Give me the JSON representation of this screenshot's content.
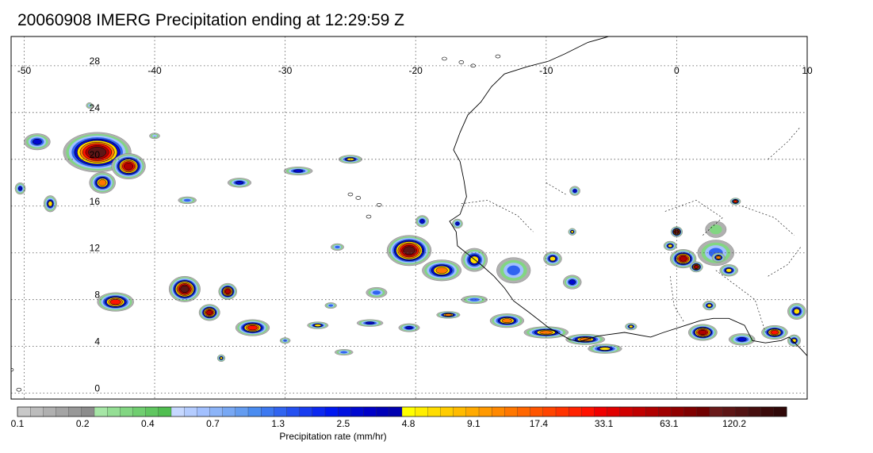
{
  "header": {
    "title": "20060908 IMERG Precipitation ending at 12:29:59 Z"
  },
  "map": {
    "lon_range": [
      -51,
      10
    ],
    "lat_range": [
      -0.5,
      30.5
    ],
    "lon_ticks": [
      "-50",
      "-40",
      "-30",
      "-20",
      "-10",
      "0",
      "10"
    ],
    "lat_ticks": [
      "0",
      "4",
      "8",
      "12",
      "16",
      "20",
      "24",
      "28"
    ],
    "gridlines": true,
    "coastline_color": "#000000"
  },
  "colorbar": {
    "title": "Precipitation rate (mm/hr)",
    "labels": [
      "0.1",
      "0.2",
      "0.4",
      "0.7",
      "1.3",
      "2.5",
      "4.8",
      "9.1",
      "17.4",
      "33.1",
      "63.1",
      "120.2"
    ],
    "colors": [
      "#c8c8c8",
      "#bcbcbc",
      "#b0b0b0",
      "#a4a4a4",
      "#989898",
      "#8c8c8c",
      "#a6e6a6",
      "#94de94",
      "#82d682",
      "#70ce70",
      "#60c660",
      "#50be50",
      "#c6d8ff",
      "#b4ccff",
      "#a2c0ff",
      "#8cb4f8",
      "#78a8f4",
      "#649cf0",
      "#4a8cf0",
      "#3c78f0",
      "#3064f0",
      "#2450f0",
      "#183cf0",
      "#0c28f0",
      "#0018f0",
      "#0010e0",
      "#0008d0",
      "#0000c8",
      "#0000b8",
      "#0000b0",
      "#ffff00",
      "#ffee00",
      "#ffdd00",
      "#ffcc00",
      "#ffbb00",
      "#ffaa00",
      "#ff9900",
      "#ff8800",
      "#ff7700",
      "#ff6600",
      "#ff5500",
      "#ff4400",
      "#ff3300",
      "#ff2200",
      "#ff1100",
      "#f00000",
      "#e00000",
      "#d00000",
      "#c00000",
      "#b00000",
      "#a00000",
      "#900000",
      "#800000",
      "#700000",
      "#6a1a1a",
      "#5e1616",
      "#521212",
      "#460e0e",
      "#3a0a0a",
      "#300808"
    ],
    "labels_per_step": 5
  },
  "precip_cells": [
    {
      "lon": -44.4,
      "lat": 20.6,
      "rx": 5.2,
      "ry": 3.4,
      "peak": 45
    },
    {
      "lon": -42.0,
      "lat": 19.4,
      "rx": 2.6,
      "ry": 2.2,
      "peak": 22
    },
    {
      "lon": -44.0,
      "lat": 18.0,
      "rx": 2.0,
      "ry": 1.8,
      "peak": 5
    },
    {
      "lon": -49.0,
      "lat": 21.5,
      "rx": 2.0,
      "ry": 1.4,
      "peak": 1.5
    },
    {
      "lon": -48.0,
      "lat": 16.2,
      "rx": 1.0,
      "ry": 1.4,
      "peak": 3
    },
    {
      "lon": -50.3,
      "lat": 17.5,
      "rx": 0.8,
      "ry": 1.0,
      "peak": 2
    },
    {
      "lon": -43.0,
      "lat": 7.8,
      "rx": 2.8,
      "ry": 1.6,
      "peak": 15
    },
    {
      "lon": -37.7,
      "lat": 8.9,
      "rx": 2.4,
      "ry": 2.2,
      "peak": 60
    },
    {
      "lon": -34.4,
      "lat": 8.7,
      "rx": 1.4,
      "ry": 1.4,
      "peak": 20
    },
    {
      "lon": -35.8,
      "lat": 6.9,
      "rx": 1.6,
      "ry": 1.4,
      "peak": 25
    },
    {
      "lon": -32.5,
      "lat": 5.6,
      "rx": 2.6,
      "ry": 1.4,
      "peak": 12
    },
    {
      "lon": -34.9,
      "lat": 3.0,
      "rx": 0.6,
      "ry": 0.6,
      "peak": 3
    },
    {
      "lon": -20.5,
      "lat": 12.2,
      "rx": 3.4,
      "ry": 2.6,
      "peak": 110
    },
    {
      "lon": -18.0,
      "lat": 10.5,
      "rx": 3.0,
      "ry": 1.8,
      "peak": 6
    },
    {
      "lon": -15.5,
      "lat": 11.4,
      "rx": 2.0,
      "ry": 2.0,
      "peak": 3
    },
    {
      "lon": -19.5,
      "lat": 14.7,
      "rx": 1.0,
      "ry": 1.0,
      "peak": 2
    },
    {
      "lon": -16.8,
      "lat": 14.5,
      "rx": 0.8,
      "ry": 0.8,
      "peak": 1.5
    },
    {
      "lon": -13.0,
      "lat": 6.2,
      "rx": 2.6,
      "ry": 1.2,
      "peak": 8
    },
    {
      "lon": -10.0,
      "lat": 5.2,
      "rx": 3.4,
      "ry": 1.0,
      "peak": 6
    },
    {
      "lon": -7.0,
      "lat": 4.6,
      "rx": 3.0,
      "ry": 0.9,
      "peak": 5
    },
    {
      "lon": -5.5,
      "lat": 3.8,
      "rx": 2.6,
      "ry": 0.8,
      "peak": 3
    },
    {
      "lon": -12.5,
      "lat": 10.5,
      "rx": 2.6,
      "ry": 2.2,
      "peak": 1.2
    },
    {
      "lon": -9.5,
      "lat": 11.5,
      "rx": 1.4,
      "ry": 1.2,
      "peak": 4
    },
    {
      "lon": -8.0,
      "lat": 9.5,
      "rx": 1.4,
      "ry": 1.2,
      "peak": 2
    },
    {
      "lon": -8.0,
      "lat": 13.8,
      "rx": 0.6,
      "ry": 0.6,
      "peak": 4
    },
    {
      "lon": -7.8,
      "lat": 17.3,
      "rx": 0.8,
      "ry": 0.8,
      "peak": 2
    },
    {
      "lon": 0.0,
      "lat": 13.8,
      "rx": 0.9,
      "ry": 0.9,
      "peak": 40
    },
    {
      "lon": -0.5,
      "lat": 12.6,
      "rx": 1.0,
      "ry": 0.8,
      "peak": 4
    },
    {
      "lon": 0.5,
      "lat": 11.5,
      "rx": 2.0,
      "ry": 1.6,
      "peak": 20
    },
    {
      "lon": 1.5,
      "lat": 10.8,
      "rx": 1.0,
      "ry": 0.9,
      "peak": 30
    },
    {
      "lon": 3.0,
      "lat": 12.0,
      "rx": 2.8,
      "ry": 2.2,
      "peak": 1.2
    },
    {
      "lon": 3.2,
      "lat": 11.6,
      "rx": 1.0,
      "ry": 0.8,
      "peak": 5
    },
    {
      "lon": 4.0,
      "lat": 10.5,
      "rx": 1.4,
      "ry": 1.0,
      "peak": 4
    },
    {
      "lon": 4.5,
      "lat": 16.4,
      "rx": 0.8,
      "ry": 0.6,
      "peak": 15
    },
    {
      "lon": 3.0,
      "lat": 14.0,
      "rx": 1.6,
      "ry": 1.4,
      "peak": 0.2
    },
    {
      "lon": 2.0,
      "lat": 5.2,
      "rx": 2.2,
      "ry": 1.4,
      "peak": 25
    },
    {
      "lon": 5.0,
      "lat": 4.6,
      "rx": 2.0,
      "ry": 1.0,
      "peak": 1.5
    },
    {
      "lon": 7.5,
      "lat": 5.2,
      "rx": 2.0,
      "ry": 1.2,
      "peak": 10
    },
    {
      "lon": 9.2,
      "lat": 7.0,
      "rx": 1.4,
      "ry": 1.4,
      "peak": 4
    },
    {
      "lon": 9.0,
      "lat": 4.5,
      "rx": 1.0,
      "ry": 1.0,
      "peak": 3
    },
    {
      "lon": 2.5,
      "lat": 7.5,
      "rx": 1.0,
      "ry": 0.8,
      "peak": 3
    },
    {
      "lon": -3.5,
      "lat": 5.7,
      "rx": 0.9,
      "ry": 0.6,
      "peak": 3
    },
    {
      "lon": -27.5,
      "lat": 5.8,
      "rx": 1.6,
      "ry": 0.6,
      "peak": 3
    },
    {
      "lon": -23.5,
      "lat": 6.0,
      "rx": 2.0,
      "ry": 0.6,
      "peak": 1.5
    },
    {
      "lon": -20.5,
      "lat": 5.6,
      "rx": 1.6,
      "ry": 0.7,
      "peak": 2
    },
    {
      "lon": -17.5,
      "lat": 6.7,
      "rx": 1.8,
      "ry": 0.6,
      "peak": 5
    },
    {
      "lon": -15.5,
      "lat": 8.0,
      "rx": 2.0,
      "ry": 0.7,
      "peak": 1.2
    },
    {
      "lon": -23.0,
      "lat": 8.6,
      "rx": 1.6,
      "ry": 0.9,
      "peak": 1.0
    },
    {
      "lon": -26.5,
      "lat": 7.5,
      "rx": 0.9,
      "ry": 0.5,
      "peak": 0.8
    },
    {
      "lon": -30.0,
      "lat": 4.5,
      "rx": 0.8,
      "ry": 0.5,
      "peak": 0.9
    },
    {
      "lon": -25.5,
      "lat": 3.5,
      "rx": 1.4,
      "ry": 0.5,
      "peak": 1.2
    },
    {
      "lon": -29.0,
      "lat": 19.0,
      "rx": 2.2,
      "ry": 0.7,
      "peak": 2.0
    },
    {
      "lon": -25.0,
      "lat": 20.0,
      "rx": 1.8,
      "ry": 0.7,
      "peak": 3.0
    },
    {
      "lon": -33.5,
      "lat": 18.0,
      "rx": 1.8,
      "ry": 0.8,
      "peak": 1.5
    },
    {
      "lon": -37.5,
      "lat": 16.5,
      "rx": 1.4,
      "ry": 0.6,
      "peak": 0.9
    },
    {
      "lon": -26.0,
      "lat": 12.5,
      "rx": 1.0,
      "ry": 0.6,
      "peak": 0.8
    },
    {
      "lon": -40.0,
      "lat": 22.0,
      "rx": 0.8,
      "ry": 0.5,
      "peak": 0.5
    },
    {
      "lon": -45.0,
      "lat": 24.6,
      "rx": 0.5,
      "ry": 0.5,
      "peak": 0.4
    }
  ]
}
